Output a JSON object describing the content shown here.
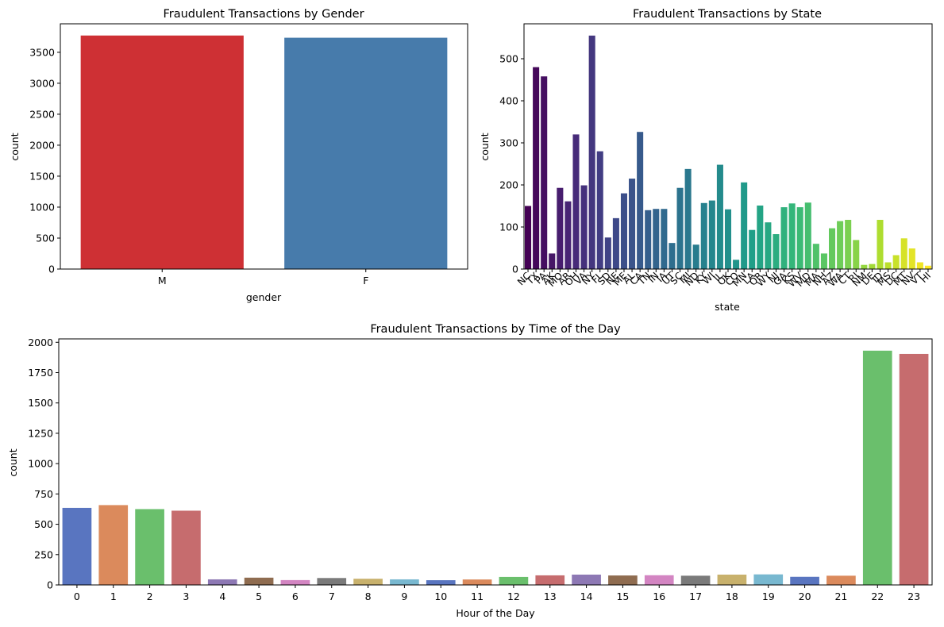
{
  "chart_data": [
    {
      "type": "bar",
      "title": "Fraudulent Transactions by Gender",
      "xlabel": "gender",
      "ylabel": "count",
      "categories": [
        "M",
        "F"
      ],
      "values": [
        3771,
        3735
      ],
      "colors": [
        "#ce3034",
        "#477bab"
      ],
      "ylim": [
        0,
        3960
      ],
      "yticks": [
        0,
        500,
        1000,
        1500,
        2000,
        2500,
        3000,
        3500
      ]
    },
    {
      "type": "bar",
      "title": "Fraudulent Transactions by State",
      "xlabel": "state",
      "ylabel": "count",
      "categories": [
        "NC",
        "TX",
        "PA",
        "AK",
        "MO",
        "AR",
        "OH",
        "VA",
        "NY",
        "FL",
        "SD",
        "NE",
        "ME",
        "AL",
        "CA",
        "TN",
        "IN",
        "IA",
        "UT",
        "SC",
        "MI",
        "ND",
        "KY",
        "WI",
        "IL",
        "OK",
        "CO",
        "MN",
        "LA",
        "OR",
        "WY",
        "NJ",
        "GA",
        "KS",
        "WV",
        "MD",
        "MA",
        "NH",
        "AZ",
        "WA",
        "CT",
        "RI",
        "NM",
        "DE",
        "ID",
        "MS",
        "DC",
        "MT",
        "NV",
        "VT",
        "HI"
      ],
      "values": [
        150,
        480,
        458,
        37,
        193,
        161,
        320,
        199,
        555,
        280,
        75,
        121,
        180,
        215,
        326,
        140,
        143,
        143,
        62,
        193,
        238,
        58,
        157,
        163,
        248,
        142,
        22,
        206,
        93,
        151,
        111,
        83,
        147,
        156,
        147,
        158,
        60,
        37,
        97,
        114,
        117,
        69,
        10,
        12,
        117,
        16,
        33,
        73,
        49,
        16,
        8
      ],
      "palette": "viridis",
      "ylim": [
        0,
        583
      ],
      "yticks": [
        0,
        100,
        200,
        300,
        400,
        500
      ]
    },
    {
      "type": "bar",
      "title": "Fraudulent Transactions by Time of the Day",
      "xlabel": "Hour of the Day",
      "ylabel": "count",
      "categories": [
        "0",
        "1",
        "2",
        "3",
        "4",
        "5",
        "6",
        "7",
        "8",
        "9",
        "10",
        "11",
        "12",
        "13",
        "14",
        "15",
        "16",
        "17",
        "18",
        "19",
        "20",
        "21",
        "22",
        "23"
      ],
      "values": [
        635,
        658,
        625,
        612,
        46,
        60,
        40,
        57,
        51,
        46,
        39,
        45,
        66,
        79,
        85,
        78,
        80,
        76,
        85,
        87,
        67,
        76,
        1931,
        1904
      ],
      "colors": [
        "#5975c0",
        "#db8a5c",
        "#6abf6c",
        "#c66c6e",
        "#8d78b4",
        "#8f6c50",
        "#d385c2",
        "#7a7a7a",
        "#c8b16c",
        "#78b8d0"
      ],
      "ylim": [
        0,
        2028
      ],
      "yticks": [
        0,
        250,
        500,
        750,
        1000,
        1250,
        1500,
        1750,
        2000
      ]
    }
  ]
}
